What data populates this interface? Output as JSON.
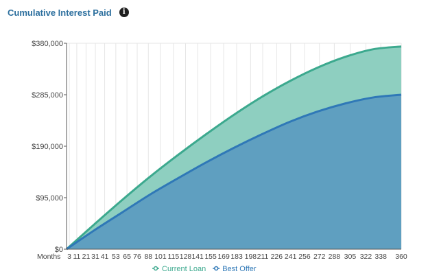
{
  "header": {
    "title": "Cumulative Interest Paid",
    "info_icon": "info-icon"
  },
  "chart_data": {
    "type": "area",
    "title": "Cumulative Interest Paid",
    "xlabel": "Months",
    "ylabel": "",
    "x_ticks": [
      3,
      11,
      21,
      31,
      41,
      53,
      65,
      76,
      88,
      101,
      115,
      128,
      141,
      155,
      169,
      183,
      198,
      211,
      226,
      241,
      256,
      272,
      288,
      305,
      322,
      338,
      360
    ],
    "y_ticks": [
      "$0",
      "$95,000",
      "$190,000",
      "$285,000",
      "$380,000"
    ],
    "xlim": [
      0,
      360
    ],
    "ylim": [
      0,
      380000
    ],
    "grid": "vertical",
    "legend": "bottom",
    "series": [
      {
        "name": "Current Loan",
        "color": "#3ca98e",
        "fill": "#8ecfc0",
        "x": [
          0,
          30,
          60,
          90,
          120,
          150,
          180,
          210,
          240,
          270,
          300,
          330,
          360
        ],
        "values": [
          0,
          46000,
          91000,
          134000,
          174000,
          212000,
          248000,
          281000,
          310000,
          335000,
          355000,
          369000,
          374000
        ]
      },
      {
        "name": "Best Offer",
        "color": "#2f78b7",
        "fill": "#5f9fc0",
        "x": [
          0,
          30,
          60,
          90,
          120,
          150,
          180,
          210,
          240,
          270,
          300,
          330,
          360
        ],
        "values": [
          0,
          35000,
          68000,
          101000,
          131000,
          160000,
          187000,
          212000,
          235000,
          254000,
          269000,
          280000,
          285000
        ]
      }
    ]
  }
}
